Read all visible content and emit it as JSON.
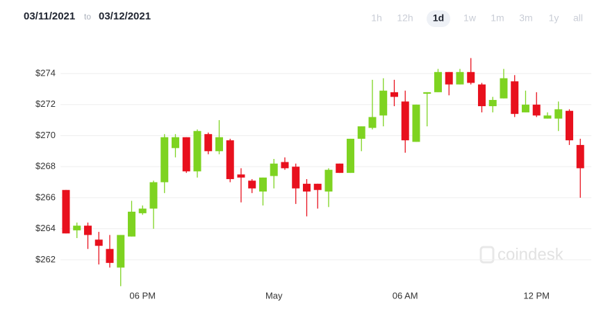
{
  "header": {
    "from": "03/11/2021",
    "to_word": "to",
    "to": "03/12/2021",
    "ranges": [
      "1h",
      "12h",
      "1d",
      "1w",
      "1m",
      "3m",
      "1y",
      "all"
    ],
    "selected_range": 2
  },
  "chart_data": {
    "type": "candlestick",
    "categories": [
      null,
      null,
      null,
      null,
      null,
      null,
      null,
      "06 PM",
      null,
      null,
      null,
      null,
      null,
      null,
      null,
      null,
      null,
      null,
      null,
      "May",
      null,
      null,
      null,
      null,
      null,
      null,
      null,
      null,
      null,
      null,
      null,
      "06 AM",
      null,
      null,
      null,
      null,
      null,
      null,
      null,
      null,
      null,
      null,
      null,
      "12 PM",
      null,
      null,
      null,
      null
    ],
    "open": [
      266.5,
      263.9,
      264.2,
      263.3,
      262.7,
      261.5,
      263.5,
      265.0,
      265.3,
      267.0,
      269.2,
      269.9,
      267.7,
      270.1,
      269.0,
      269.7,
      267.5,
      267.1,
      266.4,
      267.4,
      268.3,
      268.0,
      266.9,
      266.9,
      266.4,
      268.2,
      267.6,
      269.8,
      270.5,
      271.3,
      272.8,
      272.2,
      269.6,
      272.7,
      272.8,
      274.1,
      273.3,
      274.1,
      273.3,
      271.9,
      272.4,
      273.5,
      271.5,
      272.0,
      271.1,
      271.1,
      271.6,
      269.4
    ],
    "high": [
      266.5,
      264.4,
      264.4,
      263.8,
      263.6,
      263.6,
      265.8,
      265.5,
      267.1,
      270.1,
      270.1,
      269.9,
      270.4,
      270.2,
      271.0,
      269.8,
      267.9,
      267.2,
      267.3,
      268.5,
      268.6,
      268.2,
      267.2,
      266.9,
      267.9,
      268.2,
      269.8,
      270.6,
      273.6,
      273.7,
      273.6,
      272.9,
      272.0,
      272.8,
      274.3,
      274.1,
      274.3,
      275.0,
      273.4,
      272.5,
      274.3,
      273.9,
      272.9,
      272.8,
      271.5,
      272.2,
      271.7,
      269.8
    ],
    "low": [
      263.7,
      263.4,
      262.7,
      261.7,
      261.5,
      260.3,
      263.5,
      264.9,
      264.0,
      266.3,
      268.6,
      267.6,
      267.3,
      268.8,
      268.8,
      267.0,
      265.7,
      266.3,
      265.5,
      266.6,
      267.8,
      265.6,
      264.8,
      265.3,
      265.4,
      267.6,
      267.6,
      269.0,
      270.4,
      270.6,
      271.9,
      268.9,
      269.6,
      270.6,
      272.8,
      272.6,
      273.3,
      273.3,
      271.5,
      271.5,
      272.4,
      271.2,
      271.5,
      271.2,
      271.1,
      270.3,
      269.4,
      266.0
    ],
    "close": [
      263.7,
      264.2,
      263.6,
      262.9,
      261.8,
      263.6,
      265.1,
      265.3,
      267.0,
      269.9,
      269.9,
      267.7,
      270.3,
      269.0,
      269.9,
      267.2,
      267.3,
      266.6,
      267.3,
      268.2,
      267.9,
      266.6,
      266.4,
      266.5,
      267.8,
      267.6,
      269.8,
      270.6,
      271.2,
      272.9,
      272.5,
      269.7,
      272.0,
      272.8,
      274.1,
      273.3,
      274.1,
      273.4,
      271.9,
      272.3,
      273.7,
      271.4,
      272.0,
      271.3,
      271.3,
      271.7,
      269.7,
      267.9
    ],
    "up_color": "#7ed321",
    "down_color": "#e8101d",
    "ylim": [
      260.2,
      276
    ],
    "yticks": [
      {
        "value": 262,
        "label": "$262"
      },
      {
        "value": 264,
        "label": "$264"
      },
      {
        "value": 266,
        "label": "$266"
      },
      {
        "value": 268,
        "label": "$268"
      },
      {
        "value": 270,
        "label": "$270"
      },
      {
        "value": 272,
        "label": "$272"
      },
      {
        "value": 274,
        "label": "$274"
      }
    ],
    "grid": true,
    "watermark": "coindesk"
  }
}
